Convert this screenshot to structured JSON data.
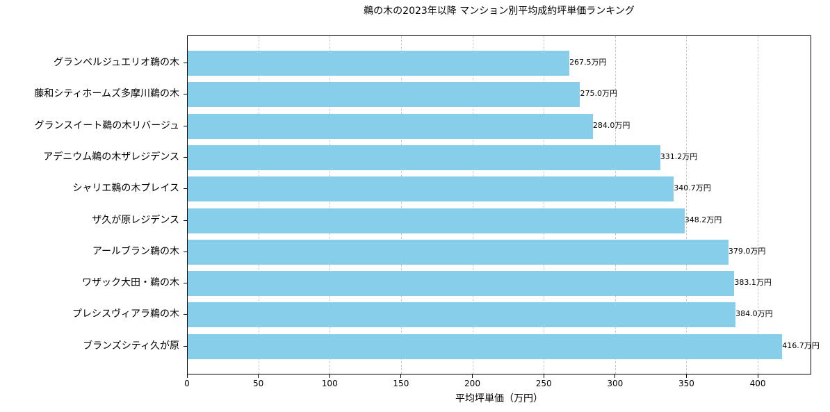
{
  "chart_data": {
    "type": "bar",
    "orientation": "horizontal",
    "title": "鵜の木の2023年以降 マンション別平均成約坪単価ランキング",
    "xlabel": "平均坪単価（万円）",
    "ylabel": "",
    "xlim": [
      0,
      437.5
    ],
    "xticks": [
      0,
      50,
      100,
      150,
      200,
      250,
      300,
      350,
      400
    ],
    "grid": {
      "x": true,
      "y": false,
      "style": "dashed"
    },
    "bar_color": "#87ceeb",
    "value_suffix": "万円",
    "categories": [
      "グランベルジュエリオ鵜の木",
      "藤和シティホームズ多摩川鵜の木",
      "グランスイート鵜の木リバージュ",
      "アデニウム鵜の木ザレジデンス",
      "シャリエ鵜の木プレイス",
      "ザ久が原レジデンス",
      "アールブラン鵜の木",
      "ワザック大田・鵜の木",
      "プレシスヴィアラ鵜の木",
      "ブランズシティ久が原"
    ],
    "values": [
      267.5,
      275.0,
      284.0,
      331.2,
      340.7,
      348.2,
      379.0,
      383.1,
      384.0,
      416.7
    ],
    "labels": [
      "267.5万円",
      "275.0万円",
      "284.0万円",
      "331.2万円",
      "340.7万円",
      "348.2万円",
      "379.0万円",
      "383.1万円",
      "384.0万円",
      "416.7万円"
    ]
  }
}
